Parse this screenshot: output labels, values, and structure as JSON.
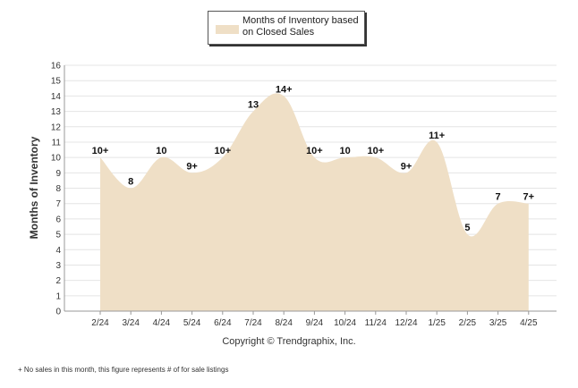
{
  "legend": {
    "label": "Months of Inventory based on Closed Sales",
    "color": "#efdfc6"
  },
  "copyright": "Copyright © Trendgraphix, Inc.",
  "footnote": "+ No sales in this month, this figure represents # of for sale listings",
  "chart_data": {
    "type": "area",
    "ylabel": "Months of Inventory",
    "xlabel": "",
    "ylim": [
      0,
      16
    ],
    "yticks": [
      0,
      1,
      2,
      3,
      4,
      5,
      6,
      7,
      8,
      9,
      10,
      11,
      12,
      13,
      14,
      15,
      16
    ],
    "grid": true,
    "legend_position": "top-center",
    "fill_color": "#efdfc6",
    "categories": [
      "2/24",
      "3/24",
      "4/24",
      "5/24",
      "6/24",
      "7/24",
      "8/24",
      "9/24",
      "10/24",
      "11/24",
      "12/24",
      "1/25",
      "2/25",
      "3/25",
      "4/25"
    ],
    "series": [
      {
        "name": "Months of Inventory based on Closed Sales",
        "values": [
          10,
          8,
          10,
          9,
          10,
          13,
          14,
          10,
          10,
          10,
          9,
          11,
          5,
          7,
          7
        ],
        "labels": [
          "10+",
          "8",
          "10",
          "9+",
          "10+",
          "13",
          "14+",
          "10+",
          "10",
          "10+",
          "9+",
          "11+",
          "5",
          "7",
          "7+"
        ]
      }
    ]
  }
}
